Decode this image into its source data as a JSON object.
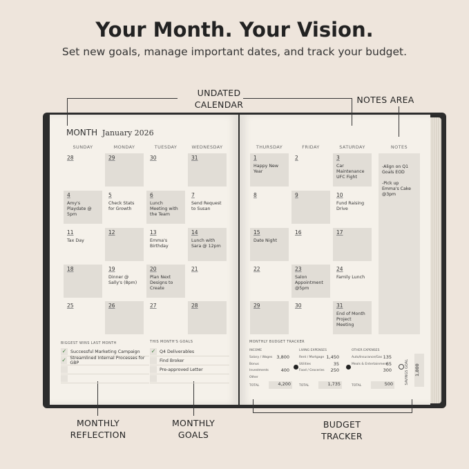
{
  "header": {
    "title": "Your Month. Your Vision.",
    "subtitle": "Set new goals, manage important dates, and track your budget."
  },
  "callouts": {
    "calendar": "UNDATED\nCALENDAR",
    "notes": "NOTES AREA",
    "reflection": "MONTHLY\nREFLECTION",
    "goals": "MONTHLY\nGOALS",
    "budget": "BUDGET\nTRACKER"
  },
  "planner": {
    "month_label": "MONTH",
    "month_value": "January 2026",
    "left_days": [
      "SUNDAY",
      "MONDAY",
      "TUESDAY",
      "WEDNESDAY"
    ],
    "right_days": [
      "THURSDAY",
      "FRIDAY",
      "SATURDAY"
    ],
    "notes_header": "NOTES",
    "notes": [
      "-Align on Q1 Goals EOD",
      "-Pick up Emma's Cake @3pm"
    ],
    "left_weeks": [
      [
        {
          "d": "28",
          "t": ""
        },
        {
          "d": "29",
          "t": ""
        },
        {
          "d": "30",
          "t": ""
        },
        {
          "d": "31",
          "t": ""
        }
      ],
      [
        {
          "d": "4",
          "t": "Amy's Playdate @ 5pm"
        },
        {
          "d": "5",
          "t": "Check Stats for Growth"
        },
        {
          "d": "6",
          "t": "Lunch Meeting with the Team"
        },
        {
          "d": "7",
          "t": "Send Request to Susan"
        }
      ],
      [
        {
          "d": "11",
          "t": "Tax Day"
        },
        {
          "d": "12",
          "t": ""
        },
        {
          "d": "13",
          "t": "Emma's Birthday"
        },
        {
          "d": "14",
          "t": "Lunch with Sara @ 12pm"
        }
      ],
      [
        {
          "d": "18",
          "t": ""
        },
        {
          "d": "19",
          "t": "Dinner @ Sally's (8pm)"
        },
        {
          "d": "20",
          "t": "Plan Next Designs to Create"
        },
        {
          "d": "21",
          "t": ""
        }
      ],
      [
        {
          "d": "25",
          "t": ""
        },
        {
          "d": "26",
          "t": ""
        },
        {
          "d": "27",
          "t": ""
        },
        {
          "d": "28",
          "t": ""
        }
      ]
    ],
    "right_weeks": [
      [
        {
          "d": "1",
          "t": "Happy New Year"
        },
        {
          "d": "2",
          "t": ""
        },
        {
          "d": "3",
          "t": "Car Maintenance UFC Fight"
        }
      ],
      [
        {
          "d": "8",
          "t": ""
        },
        {
          "d": "9",
          "t": ""
        },
        {
          "d": "10",
          "t": "Fund Raising Drive"
        }
      ],
      [
        {
          "d": "15",
          "t": "Date Night"
        },
        {
          "d": "16",
          "t": ""
        },
        {
          "d": "17",
          "t": ""
        }
      ],
      [
        {
          "d": "22",
          "t": ""
        },
        {
          "d": "23",
          "t": "Salon Appointment @5pm"
        },
        {
          "d": "24",
          "t": "Family Lunch"
        }
      ],
      [
        {
          "d": "29",
          "t": ""
        },
        {
          "d": "30",
          "t": ""
        },
        {
          "d": "31",
          "t": "End of Month Project Meeting"
        }
      ]
    ],
    "reflection": {
      "title": "BIGGEST WINS LAST MONTH",
      "items": [
        {
          "text": "Successful Marketing Campaign",
          "checked": true
        },
        {
          "text": "Streamlined Internal Processes for GBP",
          "checked": true
        },
        {
          "text": "",
          "checked": false
        },
        {
          "text": "",
          "checked": false
        }
      ]
    },
    "goals": {
      "title": "THIS MONTH'S GOALS",
      "items": [
        {
          "text": "Q4 Deliverables",
          "checked": true
        },
        {
          "text": "Find Broker",
          "checked": false
        },
        {
          "text": "Pre-approved Letter",
          "checked": false
        },
        {
          "text": "",
          "checked": false
        }
      ]
    },
    "budget": {
      "title": "MONTHLY BUDGET TRACKER",
      "groups": [
        {
          "title": "INCOME",
          "rows": [
            [
              "Salary / Wages",
              "3,800"
            ],
            [
              "Bonus",
              ""
            ],
            [
              "Investments",
              "400"
            ],
            [
              "Other",
              ""
            ]
          ],
          "total_label": "TOTAL",
          "total": "4,200"
        },
        {
          "title": "LIVING EXPENSES",
          "rows": [
            [
              "Rent / Mortgage",
              "1,450"
            ],
            [
              "Utilities",
              "35"
            ],
            [
              "Food / Groceries",
              "250"
            ],
            [
              "",
              ""
            ]
          ],
          "total_label": "TOTAL",
          "total": "1,735"
        },
        {
          "title": "OTHER EXPENSES",
          "rows": [
            [
              "Auto/Insurance/Gas",
              "135"
            ],
            [
              "Meals & Entertainment",
              "65"
            ],
            [
              "",
              "300"
            ],
            [
              "",
              ""
            ]
          ],
          "total_label": "TOTAL",
          "total": "500"
        }
      ],
      "savings_label": "SAVINGS GOAL",
      "savings": "1,800"
    }
  }
}
